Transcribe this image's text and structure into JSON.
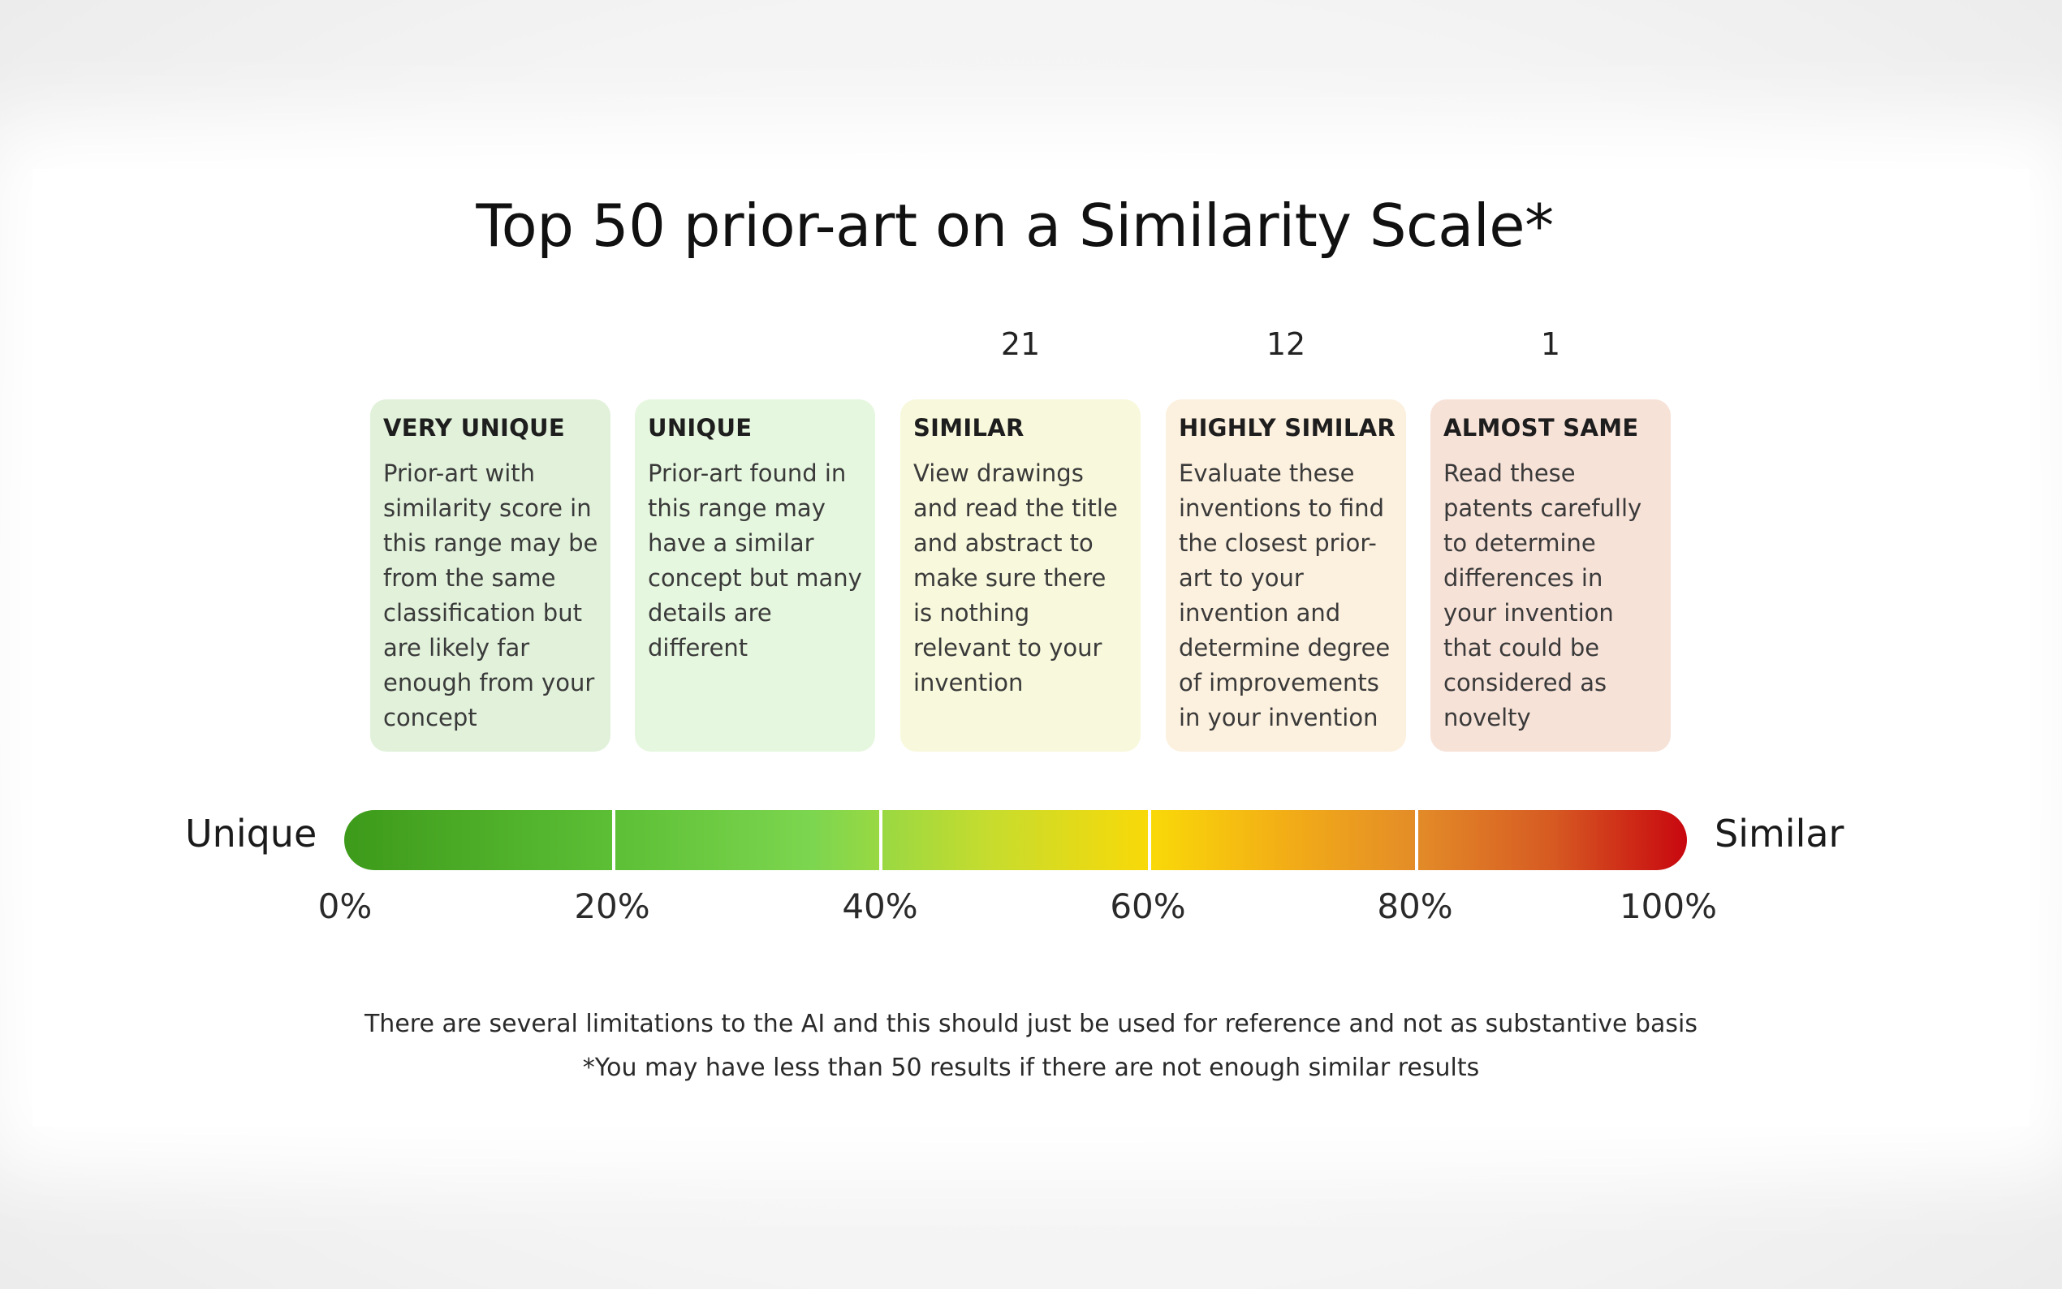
{
  "chart_data": {
    "type": "scale",
    "title": "Top 50 prior-art on a Similarity Scale*",
    "axis": {
      "left_label": "Unique",
      "right_label": "Similar",
      "range": [
        0,
        100
      ],
      "ticks": [
        "0%",
        "20%",
        "40%",
        "60%",
        "80%",
        "100%"
      ]
    },
    "categories": [
      {
        "name": "VERY UNIQUE",
        "range": [
          0,
          20
        ],
        "count": null,
        "color": "#e1f1da",
        "description": "Prior-art with similarity score in this range may be from the same classification but are likely far enough from your concept"
      },
      {
        "name": "UNIQUE",
        "range": [
          20,
          40
        ],
        "count": null,
        "color": "#e6f7df",
        "description": "Prior-art found in this range may have a similar concept but many details are different"
      },
      {
        "name": "SIMILAR",
        "range": [
          40,
          60
        ],
        "count": "21",
        "color": "#f8f8dc",
        "description": "View drawings and read the title and abstract to make sure there is nothing relevant to your invention"
      },
      {
        "name": "HIGHLY SIMILAR",
        "range": [
          60,
          80
        ],
        "count": "12",
        "color": "#fcf0de",
        "description": "Evaluate these inventions to find the closest prior-art to your invention and determine degree of improvements in your invention"
      },
      {
        "name": "ALMOST SAME",
        "range": [
          80,
          100
        ],
        "count": "1",
        "color": "#f7e2d8",
        "description": "Read these patents carefully to determine differences in your invention that could be considered as novelty"
      }
    ],
    "footnotes": [
      "There are several limitations to the AI and this should just be used for reference and not as substantive basis",
      "*You may have less than 50 results if there are not enough similar results"
    ]
  }
}
